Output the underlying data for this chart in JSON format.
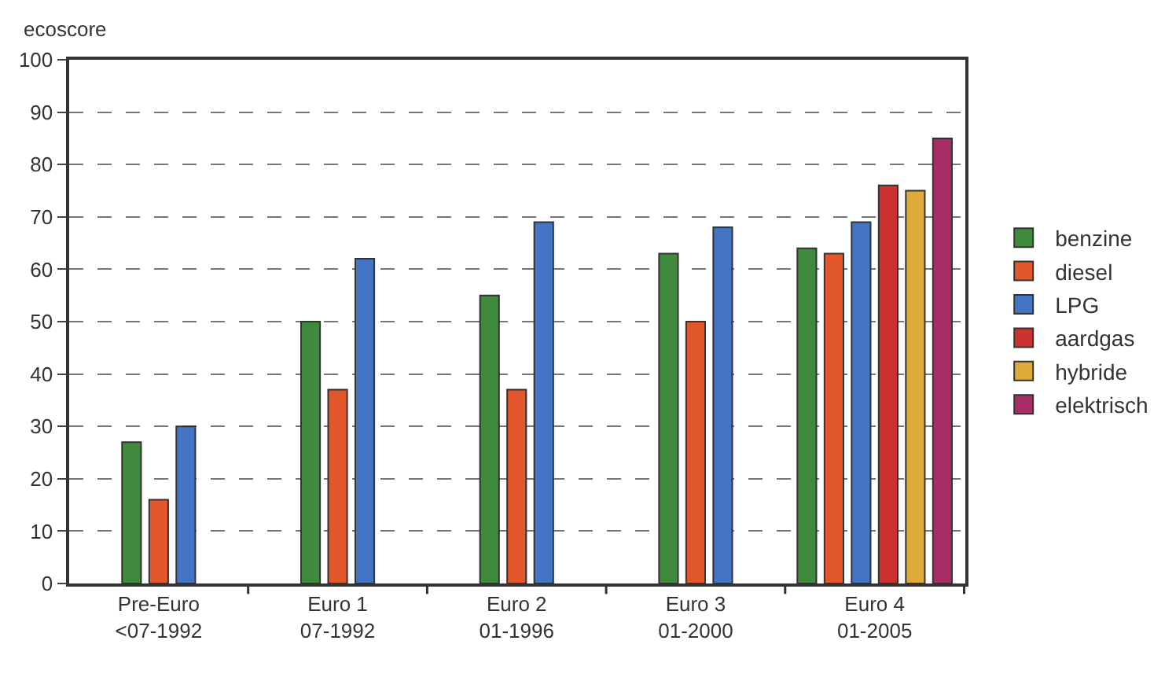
{
  "chart_data": {
    "type": "bar",
    "ylabel": "ecoscore",
    "categories": [
      "Pre-Euro\n<07-1992",
      "Euro 1\n07-1992",
      "Euro 2\n01-1996",
      "Euro 3\n01-2000",
      "Euro 4\n01-2005"
    ],
    "series": [
      {
        "name": "benzine",
        "color": "#3f8a3c",
        "values": [
          27,
          50,
          55,
          63,
          64
        ]
      },
      {
        "name": "diesel",
        "color": "#e2572b",
        "values": [
          16,
          37,
          37,
          50,
          63
        ]
      },
      {
        "name": "LPG",
        "color": "#4375c4",
        "values": [
          30,
          62,
          69,
          68,
          69
        ]
      },
      {
        "name": "aardgas",
        "color": "#cc3230",
        "values": [
          null,
          null,
          null,
          null,
          76
        ]
      },
      {
        "name": "hybride",
        "color": "#deaa3a",
        "values": [
          null,
          null,
          null,
          null,
          75
        ]
      },
      {
        "name": "elektrisch",
        "color": "#a82d66",
        "values": [
          null,
          null,
          null,
          null,
          85
        ]
      }
    ],
    "ylim": [
      0,
      100
    ],
    "yticks": [
      0,
      10,
      20,
      30,
      40,
      50,
      60,
      70,
      80,
      90,
      100
    ],
    "grid": "y",
    "legend": "right"
  }
}
